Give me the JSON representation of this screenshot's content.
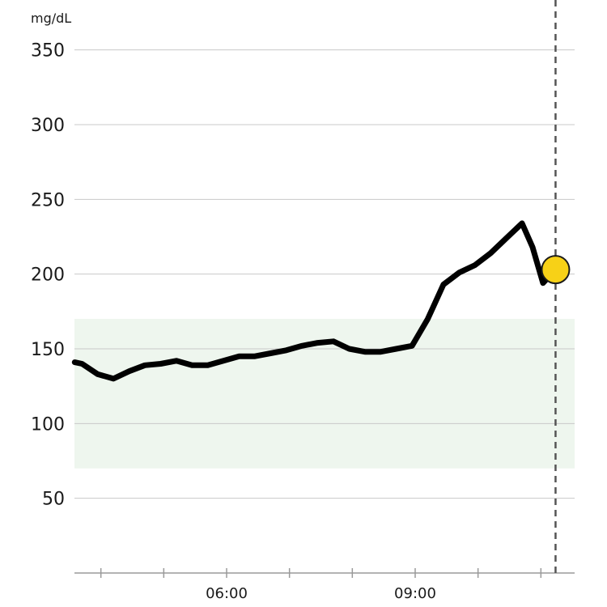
{
  "chart_data": {
    "type": "line",
    "ylabel": "mg/dL",
    "xlabel": "",
    "ylim": [
      0,
      350
    ],
    "yticks": [
      50,
      100,
      150,
      200,
      250,
      300,
      350
    ],
    "x_tick_labels": [
      {
        "time": "06:00",
        "minutes": 360
      },
      {
        "time": "09:00",
        "minutes": 540
      }
    ],
    "x_minor_tick_minutes": [
      240,
      300,
      360,
      420,
      480,
      540,
      600,
      660
    ],
    "target_range": {
      "low": 70,
      "high": 170,
      "color": "#eef6ee"
    },
    "now_marker_minutes": 674,
    "grid": true,
    "series": [
      {
        "color": "#000000",
        "points": [
          {
            "x": 215,
            "y": 141
          },
          {
            "x": 222,
            "y": 140
          },
          {
            "x": 237,
            "y": 133
          },
          {
            "x": 252,
            "y": 130
          },
          {
            "x": 267,
            "y": 135
          },
          {
            "x": 282,
            "y": 139
          },
          {
            "x": 297,
            "y": 140
          },
          {
            "x": 312,
            "y": 142
          },
          {
            "x": 327,
            "y": 139
          },
          {
            "x": 342,
            "y": 139
          },
          {
            "x": 357,
            "y": 142
          },
          {
            "x": 372,
            "y": 145
          },
          {
            "x": 387,
            "y": 145
          },
          {
            "x": 402,
            "y": 147
          },
          {
            "x": 417,
            "y": 149
          },
          {
            "x": 432,
            "y": 152
          },
          {
            "x": 447,
            "y": 154
          },
          {
            "x": 462,
            "y": 155
          },
          {
            "x": 477,
            "y": 150
          },
          {
            "x": 492,
            "y": 148
          },
          {
            "x": 507,
            "y": 148
          },
          {
            "x": 522,
            "y": 150
          },
          {
            "x": 537,
            "y": 152
          },
          {
            "x": 552,
            "y": 170
          },
          {
            "x": 567,
            "y": 193
          },
          {
            "x": 582,
            "y": 201
          },
          {
            "x": 597,
            "y": 206
          },
          {
            "x": 612,
            "y": 214
          },
          {
            "x": 627,
            "y": 224
          },
          {
            "x": 642,
            "y": 234
          },
          {
            "x": 652,
            "y": 218
          },
          {
            "x": 662,
            "y": 194
          },
          {
            "x": 674,
            "y": 203
          }
        ]
      }
    ],
    "current_reading": {
      "x": 674,
      "y": 203,
      "color": "#f7d117"
    }
  }
}
